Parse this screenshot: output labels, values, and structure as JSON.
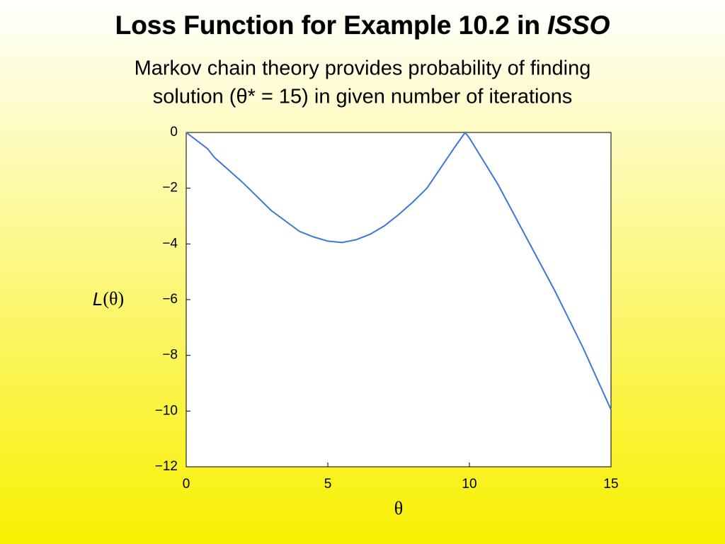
{
  "chart_data": {
    "type": "line",
    "title": [
      "Loss Function for Example 10.2 in",
      "ISSO"
    ],
    "subtitle": [
      "Markov chain theory provides probability of finding",
      "solution (θ* = 15) in given number of iterations"
    ],
    "xlabel": "θ",
    "ylabel": [
      "L",
      "(θ)"
    ],
    "x": [
      0,
      0.75,
      1,
      2,
      3,
      4,
      4.5,
      5,
      5.5,
      6,
      6.5,
      7,
      7.5,
      8,
      8.5,
      9,
      9.5,
      9.85,
      10,
      11,
      12,
      13,
      14,
      15
    ],
    "series": [
      {
        "color": "#3a78d8",
        "values": [
          0,
          -0.58,
          -0.9,
          -1.8,
          -2.8,
          -3.55,
          -3.75,
          -3.9,
          -3.95,
          -3.85,
          -3.65,
          -3.35,
          -2.95,
          -2.5,
          -2.0,
          -1.25,
          -0.5,
          0,
          -0.2,
          -1.85,
          -3.75,
          -5.65,
          -7.7,
          -9.95
        ]
      }
    ],
    "xlim": [
      0,
      15
    ],
    "xticks": [
      0,
      5,
      10,
      15
    ],
    "ylim": [
      -12,
      0
    ],
    "yticks": [
      0,
      {
        "value": -2,
        "label": "−2"
      },
      {
        "value": -4,
        "label": "−4"
      },
      {
        "value": -6,
        "label": "−6"
      },
      {
        "value": -8,
        "label": "−8"
      },
      {
        "value": -10,
        "label": "−10"
      },
      {
        "value": -12,
        "label": "−12"
      }
    ]
  }
}
